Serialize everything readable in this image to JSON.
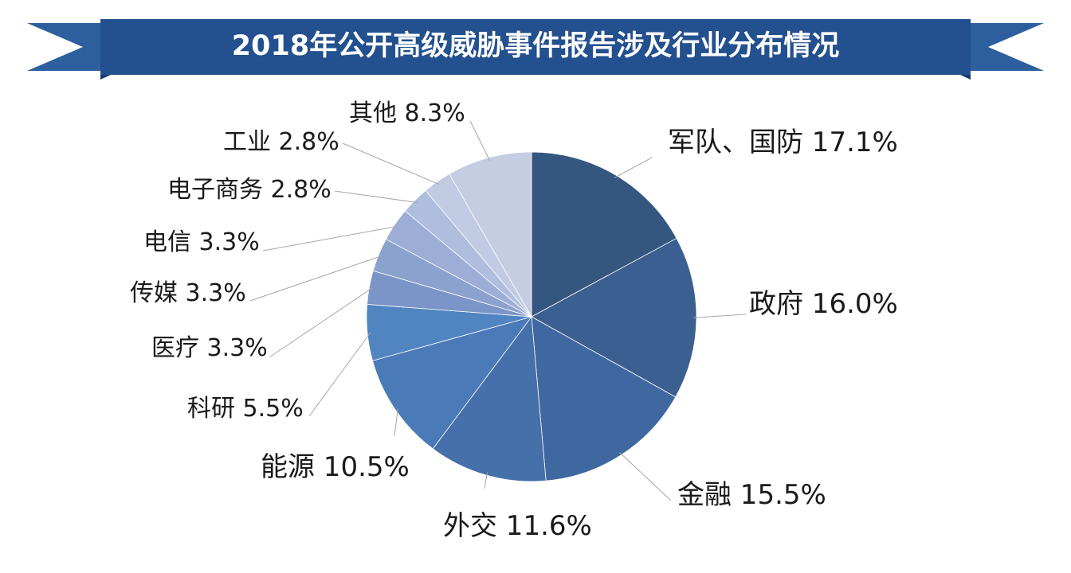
{
  "header": {
    "title": "2018年公开高级威胁事件报告涉及行业分布情况"
  },
  "colors": {
    "banner": "#23508e",
    "ribbon": "#2d5f9e",
    "ribbon_fold": "#173a6b"
  },
  "chart_data": {
    "type": "pie",
    "title": "2018年公开高级威胁事件报告涉及行业分布情况",
    "unit": "%",
    "start": "12 o'clock",
    "direction": "clockwise",
    "slices": [
      {
        "category": "军队、国防",
        "value": 17.1,
        "label": "军队、国防 17.1%",
        "color": "#34567f"
      },
      {
        "category": "政府",
        "value": 16.0,
        "label": "政府 16.0%",
        "color": "#3b5f90"
      },
      {
        "category": "金融",
        "value": 15.5,
        "label": "金融 15.5%",
        "color": "#3f68a0"
      },
      {
        "category": "外交",
        "value": 11.6,
        "label": "外交 11.6%",
        "color": "#4570aa"
      },
      {
        "category": "能源",
        "value": 10.5,
        "label": "能源 10.5%",
        "color": "#4a7ab8"
      },
      {
        "category": "科研",
        "value": 5.5,
        "label": "科研 5.5%",
        "color": "#5085c2"
      },
      {
        "category": "医疗",
        "value": 3.3,
        "label": "医疗 3.3%",
        "color": "#7b95c8"
      },
      {
        "category": "传媒",
        "value": 3.3,
        "label": "传媒 3.3%",
        "color": "#8ba2cf"
      },
      {
        "category": "电信",
        "value": 3.3,
        "label": "电信 3.3%",
        "color": "#9caed5"
      },
      {
        "category": "电子商务",
        "value": 2.8,
        "label": "电子商务 2.8%",
        "color": "#afbedd"
      },
      {
        "category": "工业",
        "value": 2.8,
        "label": "工业 2.8%",
        "color": "#c1cbe3"
      },
      {
        "category": "其他",
        "value": 8.3,
        "label": "其他 8.3%",
        "color": "#c4cde2"
      }
    ]
  }
}
